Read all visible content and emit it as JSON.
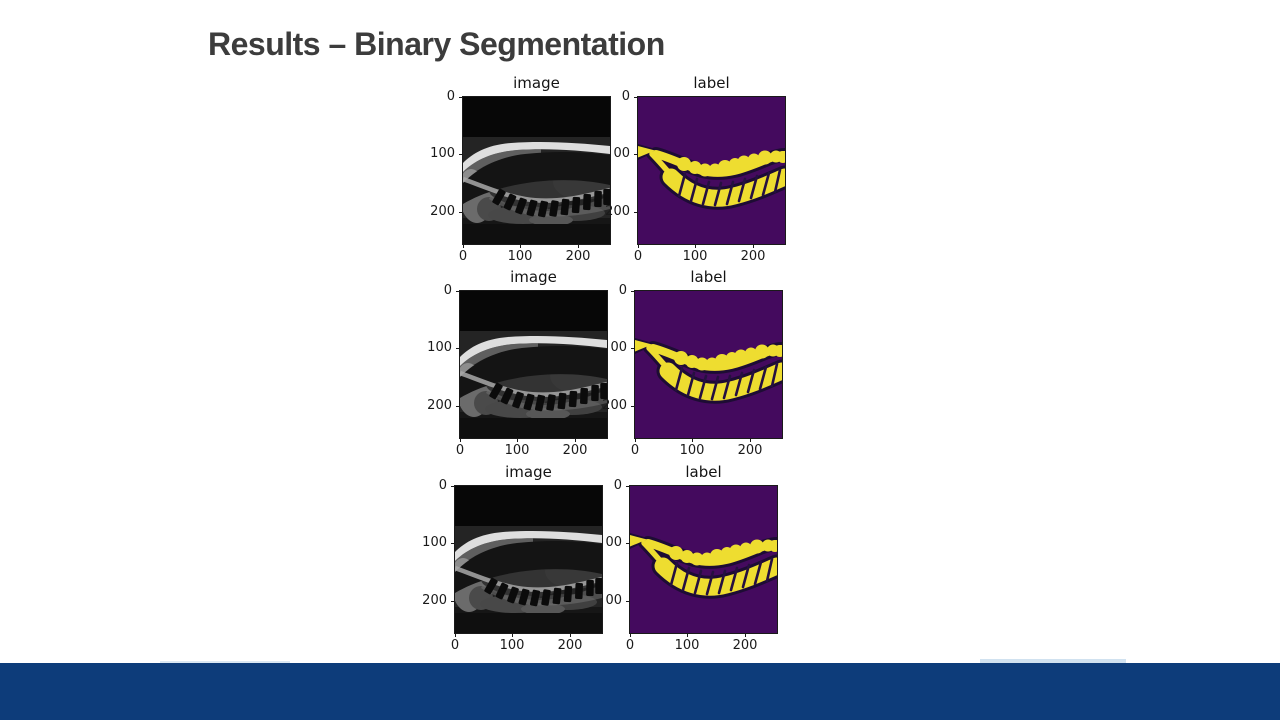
{
  "slide": {
    "title": "Results – Binary Segmentation",
    "title_color": "#3c3c3c",
    "background": "#ffffff",
    "footer_bar_color": "#0d3c7a",
    "footer_accent_color": "#cfe0ef"
  },
  "figure": {
    "mask_colors": {
      "background": "#440a5e",
      "foreground": "#eedd30"
    },
    "rows": [
      {
        "panels": [
          {
            "kind": "mri",
            "title": "image",
            "yticks": [
              "0",
              "100",
              "200"
            ],
            "xticks": [
              "0",
              "100",
              "200"
            ]
          },
          {
            "kind": "mask",
            "title": "label",
            "yticks": [
              "0",
              "00",
              "200"
            ],
            "xticks": [
              "0",
              "100",
              "200"
            ]
          }
        ]
      },
      {
        "panels": [
          {
            "kind": "mri",
            "title": "image",
            "yticks": [
              "0",
              "100",
              "200"
            ],
            "xticks": [
              "0",
              "100",
              "200"
            ]
          },
          {
            "kind": "mask",
            "title": "label",
            "yticks": [
              "0",
              "00",
              "200"
            ],
            "xticks": [
              "0",
              "100",
              "200"
            ]
          }
        ]
      },
      {
        "panels": [
          {
            "kind": "mri",
            "title": "image",
            "yticks": [
              "0",
              "100",
              "200"
            ],
            "xticks": [
              "0",
              "100",
              "200"
            ]
          },
          {
            "kind": "mask",
            "title": "label",
            "yticks": [
              "0",
              "00",
              "00"
            ],
            "xticks": [
              "0",
              "100",
              "200"
            ]
          }
        ]
      }
    ]
  }
}
